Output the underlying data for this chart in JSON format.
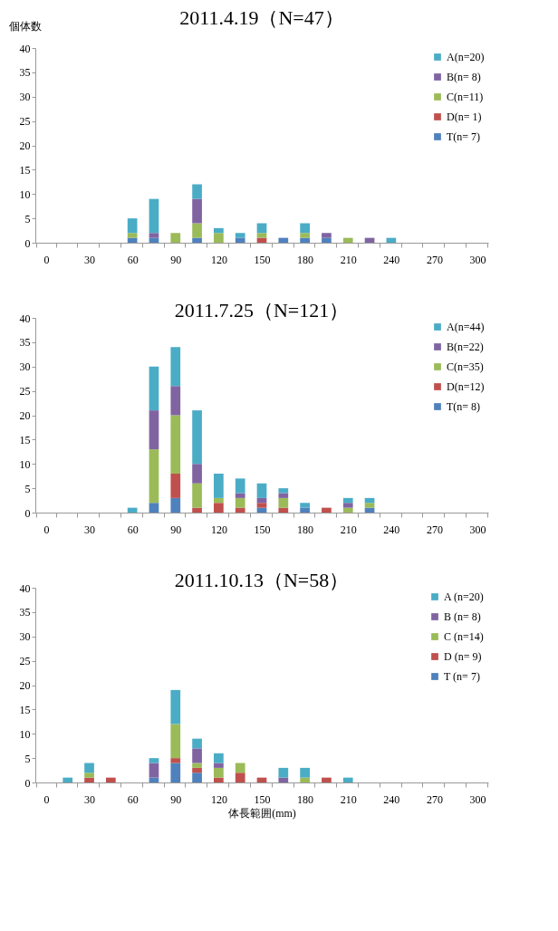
{
  "chart_data": [
    {
      "type": "bar",
      "title": "2011.4.19（N=47）",
      "ylabel": "個体数",
      "stacked": true,
      "grid": false,
      "legend": "top right",
      "ylim": [
        0,
        40
      ],
      "yticks": [
        0,
        5,
        10,
        15,
        20,
        25,
        30,
        35,
        40
      ],
      "categories": [
        "0",
        null,
        "30",
        null,
        "60",
        null,
        "90",
        null,
        "120",
        null,
        "150",
        null,
        "180",
        null,
        "210",
        null,
        "240",
        null,
        "270",
        null,
        "300"
      ],
      "series": [
        {
          "name": "T(n=  7)",
          "color": "#4f81bd",
          "values": [
            0,
            0,
            0,
            0,
            1,
            1,
            0,
            1,
            0,
            1,
            0,
            1,
            1,
            1,
            0,
            0,
            0,
            0,
            0,
            0,
            0
          ]
        },
        {
          "name": "D(n= 1)",
          "color": "#c0504d",
          "values": [
            0,
            0,
            0,
            0,
            0,
            0,
            0,
            0,
            0,
            0,
            1,
            0,
            0,
            0,
            0,
            0,
            0,
            0,
            0,
            0,
            0
          ]
        },
        {
          "name": "C(n=11)",
          "color": "#9bbb59",
          "values": [
            0,
            0,
            0,
            0,
            1,
            0,
            2,
            3,
            2,
            0,
            1,
            0,
            1,
            0,
            1,
            0,
            0,
            0,
            0,
            0,
            0
          ]
        },
        {
          "name": "B(n=  8)",
          "color": "#8064a2",
          "values": [
            0,
            0,
            0,
            0,
            0,
            1,
            0,
            5,
            0,
            0,
            0,
            0,
            0,
            1,
            0,
            1,
            0,
            0,
            0,
            0,
            0
          ]
        },
        {
          "name": "A(n=20)",
          "color": "#4bacc6",
          "values": [
            0,
            0,
            0,
            0,
            3,
            7,
            0,
            3,
            1,
            1,
            2,
            0,
            2,
            0,
            0,
            0,
            1,
            0,
            0,
            0,
            0
          ]
        }
      ]
    },
    {
      "type": "bar",
      "title": "2011.7.25（N=121）",
      "stacked": true,
      "grid": false,
      "legend": "top right",
      "ylim": [
        0,
        40
      ],
      "yticks": [
        0,
        5,
        10,
        15,
        20,
        25,
        30,
        35,
        40
      ],
      "categories": [
        "0",
        null,
        "30",
        null,
        "60",
        null,
        "90",
        null,
        "120",
        null,
        "150",
        null,
        "180",
        null,
        "210",
        null,
        "240",
        null,
        "270",
        null,
        "300"
      ],
      "series": [
        {
          "name": "T(n= 8)",
          "color": "#4f81bd",
          "values": [
            0,
            0,
            0,
            0,
            0,
            2,
            3,
            0,
            0,
            0,
            1,
            0,
            1,
            0,
            0,
            1,
            0,
            0,
            0,
            0,
            0
          ]
        },
        {
          "name": "D(n=12)",
          "color": "#c0504d",
          "values": [
            0,
            0,
            0,
            0,
            0,
            0,
            5,
            1,
            2,
            1,
            1,
            1,
            0,
            1,
            0,
            0,
            0,
            0,
            0,
            0,
            0
          ]
        },
        {
          "name": "C(n=35)",
          "color": "#9bbb59",
          "values": [
            0,
            0,
            0,
            0,
            0,
            11,
            12,
            5,
            1,
            2,
            0,
            2,
            0,
            0,
            1,
            1,
            0,
            0,
            0,
            0,
            0
          ]
        },
        {
          "name": "B(n=22)",
          "color": "#8064a2",
          "values": [
            0,
            0,
            0,
            0,
            0,
            8,
            6,
            4,
            0,
            1,
            1,
            1,
            0,
            0,
            1,
            0,
            0,
            0,
            0,
            0,
            0
          ]
        },
        {
          "name": "A(n=44)",
          "color": "#4bacc6",
          "values": [
            0,
            0,
            0,
            0,
            1,
            9,
            8,
            11,
            5,
            3,
            3,
            1,
            1,
            0,
            1,
            1,
            0,
            0,
            0,
            0,
            0
          ]
        }
      ]
    },
    {
      "type": "bar",
      "title": "2011.10.13（N=58）",
      "xlabel": "体長範囲(mm)",
      "stacked": true,
      "grid": false,
      "legend": "top right",
      "ylim": [
        0,
        40
      ],
      "yticks": [
        0,
        5,
        10,
        15,
        20,
        25,
        30,
        35,
        40
      ],
      "categories": [
        "0",
        null,
        "30",
        null,
        "60",
        null,
        "90",
        null,
        "120",
        null,
        "150",
        null,
        "180",
        null,
        "210",
        null,
        "240",
        null,
        "270",
        null,
        "300"
      ],
      "series": [
        {
          "name": "T (n=  7)",
          "color": "#4f81bd",
          "values": [
            0,
            0,
            0,
            0,
            0,
            1,
            4,
            2,
            0,
            0,
            0,
            0,
            0,
            0,
            0,
            0,
            0,
            0,
            0,
            0,
            0
          ]
        },
        {
          "name": "D (n= 9)",
          "color": "#c0504d",
          "values": [
            0,
            0,
            1,
            1,
            0,
            0,
            1,
            1,
            1,
            2,
            1,
            0,
            0,
            1,
            0,
            0,
            0,
            0,
            0,
            0,
            0
          ]
        },
        {
          "name": "C (n=14)",
          "color": "#9bbb59",
          "values": [
            0,
            0,
            1,
            0,
            0,
            0,
            7,
            1,
            2,
            2,
            0,
            0,
            1,
            0,
            0,
            0,
            0,
            0,
            0,
            0,
            0
          ]
        },
        {
          "name": "B (n= 8)",
          "color": "#8064a2",
          "values": [
            0,
            0,
            0,
            0,
            0,
            3,
            0,
            3,
            1,
            0,
            0,
            1,
            0,
            0,
            0,
            0,
            0,
            0,
            0,
            0,
            0
          ]
        },
        {
          "name": "A (n=20)",
          "color": "#4bacc6",
          "values": [
            0,
            1,
            2,
            0,
            0,
            1,
            7,
            2,
            2,
            0,
            0,
            2,
            2,
            0,
            1,
            0,
            0,
            0,
            0,
            0,
            0
          ]
        }
      ]
    }
  ]
}
